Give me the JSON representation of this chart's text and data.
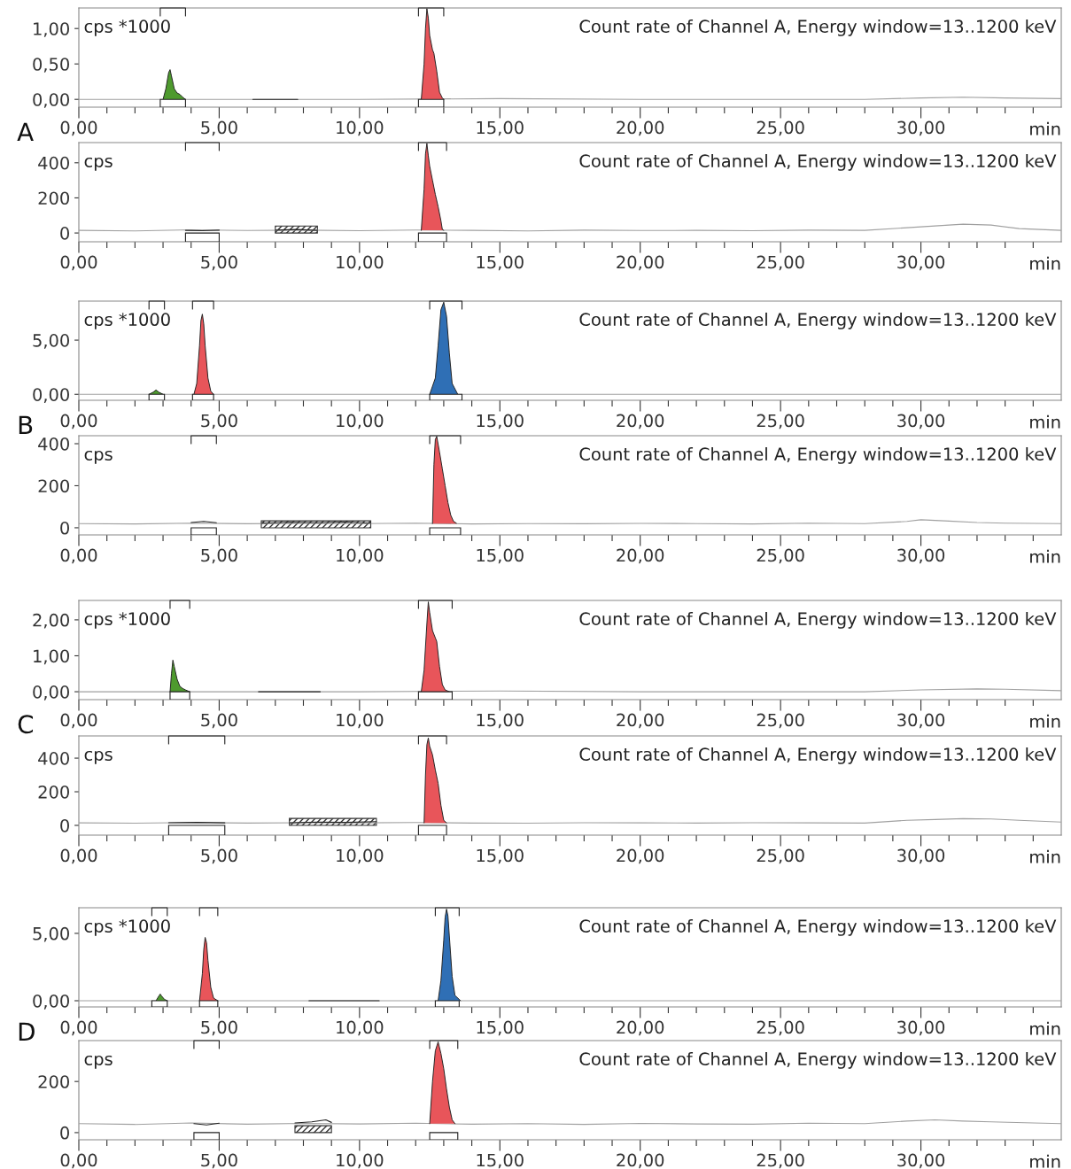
{
  "chart_data": [
    {
      "type": "line",
      "title": "Count rate of Channel A, Energy window=13..1200 keV",
      "ylabel": "cps *1000",
      "xlabel": "min",
      "annotations": [
        "A"
      ],
      "xlim": [
        0,
        35
      ],
      "ylim": [
        -0.11,
        1.29
      ],
      "yticks": [
        {
          "value": 0,
          "label": "0,00"
        },
        {
          "value": 0.5,
          "label": "0,50"
        },
        {
          "value": 1,
          "label": "1,00"
        }
      ],
      "xticks": [
        {
          "value": 0,
          "label": "0,00"
        },
        {
          "value": 1,
          "label": null
        },
        {
          "value": 2,
          "label": null
        },
        {
          "value": 3,
          "label": null
        },
        {
          "value": 4,
          "label": null
        },
        {
          "value": 5,
          "label": "5,00"
        },
        {
          "value": 6,
          "label": null
        },
        {
          "value": 7,
          "label": null
        },
        {
          "value": 8,
          "label": null
        },
        {
          "value": 9,
          "label": null
        },
        {
          "value": 10,
          "label": "10,00"
        },
        {
          "value": 11,
          "label": null
        },
        {
          "value": 12,
          "label": null
        },
        {
          "value": 13,
          "label": null
        },
        {
          "value": 14,
          "label": null
        },
        {
          "value": 15,
          "label": "15,00"
        },
        {
          "value": 16,
          "label": null
        },
        {
          "value": 17,
          "label": null
        },
        {
          "value": 18,
          "label": null
        },
        {
          "value": 19,
          "label": null
        },
        {
          "value": 20,
          "label": "20,00"
        },
        {
          "value": 21,
          "label": null
        },
        {
          "value": 22,
          "label": null
        },
        {
          "value": 23,
          "label": null
        },
        {
          "value": 24,
          "label": null
        },
        {
          "value": 25,
          "label": "25,00"
        },
        {
          "value": 26,
          "label": null
        },
        {
          "value": 27,
          "label": null
        },
        {
          "value": 28,
          "label": null
        },
        {
          "value": 29,
          "label": null
        },
        {
          "value": 30,
          "label": "30,00"
        },
        {
          "value": 31,
          "label": null
        },
        {
          "value": 32,
          "label": null
        },
        {
          "value": 33,
          "label": null
        },
        {
          "value": 34,
          "label": null
        }
      ],
      "series": [
        {
          "type": "line",
          "color": "#a0a0a0",
          "x": [
            0,
            5,
            10,
            15,
            20,
            25,
            28,
            30,
            31.5,
            33,
            35
          ],
          "values": [
            0,
            0,
            0,
            0.01,
            0,
            0,
            0,
            0.02,
            0.03,
            0.02,
            0.01
          ]
        },
        {
          "type": "line",
          "color": "#222222",
          "x": [
            6.2,
            7.8
          ],
          "values": [
            0,
            0
          ]
        },
        {
          "type": "area",
          "color": "#4e9a2e",
          "x": [
            3.0,
            3.1,
            3.2,
            3.25,
            3.3,
            3.4,
            3.5,
            3.6,
            3.7,
            3.8
          ],
          "values": [
            0,
            0.15,
            0.38,
            0.42,
            0.33,
            0.15,
            0.09,
            0.07,
            0.03,
            0
          ]
        },
        {
          "type": "area",
          "color": "#e8555a",
          "x": [
            12.2,
            12.3,
            12.35,
            12.4,
            12.45,
            12.5,
            12.6,
            12.65,
            12.75,
            12.85,
            12.95,
            13.0
          ],
          "values": [
            0,
            0.5,
            1.0,
            1.28,
            1.15,
            0.9,
            0.7,
            0.65,
            0.4,
            0.1,
            0.02,
            0
          ]
        }
      ],
      "bands": [
        {
          "axis": "x",
          "from": 2.9,
          "to": 3.8,
          "color": "#ffffff"
        },
        {
          "axis": "x",
          "from": 12.1,
          "to": 13.0,
          "color": "#ffffff"
        }
      ]
    },
    {
      "type": "line",
      "title": "Count rate of Channel A, Energy window=13..1200 keV",
      "ylabel": "cps",
      "xlabel": "min",
      "xlim": [
        0,
        35
      ],
      "ylim": [
        -50,
        515
      ],
      "yticks": [
        0,
        200,
        400
      ],
      "xticks": [
        {
          "value": 0,
          "label": "0,00"
        },
        {
          "value": 1,
          "label": null
        },
        {
          "value": 2,
          "label": null
        },
        {
          "value": 3,
          "label": null
        },
        {
          "value": 4,
          "label": null
        },
        {
          "value": 5,
          "label": "5,00"
        },
        {
          "value": 6,
          "label": null
        },
        {
          "value": 7,
          "label": null
        },
        {
          "value": 8,
          "label": null
        },
        {
          "value": 9,
          "label": null
        },
        {
          "value": 10,
          "label": "10,00"
        },
        {
          "value": 11,
          "label": null
        },
        {
          "value": 12,
          "label": null
        },
        {
          "value": 13,
          "label": null
        },
        {
          "value": 14,
          "label": null
        },
        {
          "value": 15,
          "label": "15,00"
        },
        {
          "value": 16,
          "label": null
        },
        {
          "value": 17,
          "label": null
        },
        {
          "value": 18,
          "label": null
        },
        {
          "value": 19,
          "label": null
        },
        {
          "value": 20,
          "label": "20,00"
        },
        {
          "value": 21,
          "label": null
        },
        {
          "value": 22,
          "label": null
        },
        {
          "value": 23,
          "label": null
        },
        {
          "value": 24,
          "label": null
        },
        {
          "value": 25,
          "label": "25,00"
        },
        {
          "value": 26,
          "label": null
        },
        {
          "value": 27,
          "label": null
        },
        {
          "value": 28,
          "label": null
        },
        {
          "value": 29,
          "label": null
        },
        {
          "value": 30,
          "label": "30,00"
        },
        {
          "value": 31,
          "label": null
        },
        {
          "value": 32,
          "label": null
        },
        {
          "value": 33,
          "label": null
        },
        {
          "value": 34,
          "label": null
        }
      ],
      "series": [
        {
          "type": "line",
          "color": "#a0a0a0",
          "x": [
            0,
            2,
            4,
            6,
            8,
            10,
            12,
            14,
            16,
            18,
            20,
            22,
            24,
            26,
            28,
            29.5,
            30.5,
            31.5,
            32.5,
            33.5,
            35
          ],
          "values": [
            15,
            12,
            18,
            14,
            16,
            13,
            17,
            15,
            12,
            16,
            14,
            15,
            13,
            16,
            15,
            30,
            40,
            50,
            45,
            25,
            15
          ]
        },
        {
          "type": "line",
          "color": "#222222",
          "x": [
            3.8,
            4.4,
            5.0
          ],
          "values": [
            15,
            13,
            16
          ]
        },
        {
          "type": "line",
          "color": "#222222",
          "x": [
            7.0,
            7.75,
            8.5
          ],
          "values": [
            16,
            20,
            15
          ]
        },
        {
          "type": "area",
          "color": "#e8555a",
          "x": [
            12.2,
            12.3,
            12.35,
            12.4,
            12.45,
            12.5,
            12.6,
            12.7,
            12.8,
            12.9,
            12.95,
            13.0
          ],
          "values": [
            15,
            250,
            450,
            510,
            440,
            380,
            300,
            220,
            150,
            70,
            20,
            15
          ]
        }
      ],
      "bands": [
        {
          "axis": "x",
          "from": 3.8,
          "to": 5.0,
          "color": "#ffffff"
        },
        {
          "axis": "x",
          "from": 12.1,
          "to": 13.1,
          "color": "#ffffff"
        },
        {
          "axis": "x",
          "from": 7.0,
          "to": 8.5,
          "color": "#333333"
        }
      ]
    },
    {
      "type": "line",
      "title": "Count rate of Channel A, Energy window=13..1200 keV",
      "ylabel": "cps *1000",
      "xlabel": "min",
      "annotations": [
        "B"
      ],
      "xlim": [
        0,
        35
      ],
      "ylim": [
        -0.55,
        8.6
      ],
      "yticks": [
        {
          "value": 0,
          "label": "0,00"
        },
        {
          "value": 5,
          "label": "5,00"
        }
      ],
      "xticks": [
        {
          "value": 0,
          "label": "0,00"
        },
        {
          "value": 1,
          "label": null
        },
        {
          "value": 2,
          "label": null
        },
        {
          "value": 3,
          "label": null
        },
        {
          "value": 4,
          "label": null
        },
        {
          "value": 5,
          "label": "5,00"
        },
        {
          "value": 6,
          "label": null
        },
        {
          "value": 7,
          "label": null
        },
        {
          "value": 8,
          "label": null
        },
        {
          "value": 9,
          "label": null
        },
        {
          "value": 10,
          "label": "10,00"
        },
        {
          "value": 11,
          "label": null
        },
        {
          "value": 12,
          "label": null
        },
        {
          "value": 13,
          "label": null
        },
        {
          "value": 14,
          "label": null
        },
        {
          "value": 15,
          "label": "15,00"
        },
        {
          "value": 16,
          "label": null
        },
        {
          "value": 17,
          "label": null
        },
        {
          "value": 18,
          "label": null
        },
        {
          "value": 19,
          "label": null
        },
        {
          "value": 20,
          "label": "20,00"
        },
        {
          "value": 21,
          "label": null
        },
        {
          "value": 22,
          "label": null
        },
        {
          "value": 23,
          "label": null
        },
        {
          "value": 24,
          "label": null
        },
        {
          "value": 25,
          "label": "25,00"
        },
        {
          "value": 26,
          "label": null
        },
        {
          "value": 27,
          "label": null
        },
        {
          "value": 28,
          "label": null
        },
        {
          "value": 29,
          "label": null
        },
        {
          "value": 30,
          "label": "30,00"
        },
        {
          "value": 31,
          "label": null
        },
        {
          "value": 32,
          "label": null
        },
        {
          "value": 33,
          "label": null
        },
        {
          "value": 34,
          "label": null
        }
      ],
      "series": [
        {
          "type": "line",
          "color": "#a0a0a0",
          "x": [
            0,
            5,
            10,
            15,
            20,
            25,
            30,
            35
          ],
          "values": [
            0,
            0,
            0,
            0,
            0,
            0,
            0,
            0
          ]
        },
        {
          "type": "area",
          "color": "#4e9a2e",
          "x": [
            2.5,
            2.65,
            2.75,
            2.85,
            3.0
          ],
          "values": [
            0,
            0.2,
            0.4,
            0.2,
            0
          ]
        },
        {
          "type": "area",
          "color": "#e8555a",
          "x": [
            4.1,
            4.2,
            4.3,
            4.35,
            4.4,
            4.45,
            4.5,
            4.6,
            4.7,
            4.8
          ],
          "values": [
            0,
            1.0,
            4.5,
            6.8,
            7.4,
            6.5,
            4.5,
            1.5,
            0.3,
            0
          ]
        },
        {
          "type": "area",
          "color": "#2f6fb5",
          "x": [
            12.5,
            12.7,
            12.8,
            12.9,
            13.0,
            13.1,
            13.2,
            13.3,
            13.5
          ],
          "values": [
            0,
            1.5,
            4.5,
            7.8,
            8.5,
            7.2,
            3.8,
            1.0,
            0
          ]
        }
      ],
      "bands": [
        {
          "axis": "x",
          "from": 2.5,
          "to": 3.05,
          "color": "#ffffff"
        },
        {
          "axis": "x",
          "from": 4.05,
          "to": 4.8,
          "color": "#ffffff"
        },
        {
          "axis": "x",
          "from": 12.5,
          "to": 13.65,
          "color": "#ffffff"
        }
      ]
    },
    {
      "type": "line",
      "title": "Count rate of Channel A, Energy window=13..1200 keV",
      "ylabel": "cps",
      "xlabel": "min",
      "xlim": [
        0,
        35
      ],
      "ylim": [
        -34,
        438
      ],
      "yticks": [
        0,
        200,
        400
      ],
      "xticks": [
        {
          "value": 0,
          "label": "0,00"
        },
        {
          "value": 1,
          "label": null
        },
        {
          "value": 2,
          "label": null
        },
        {
          "value": 3,
          "label": null
        },
        {
          "value": 4,
          "label": null
        },
        {
          "value": 5,
          "label": "5,00"
        },
        {
          "value": 6,
          "label": null
        },
        {
          "value": 7,
          "label": null
        },
        {
          "value": 8,
          "label": null
        },
        {
          "value": 9,
          "label": null
        },
        {
          "value": 10,
          "label": "10,00"
        },
        {
          "value": 11,
          "label": null
        },
        {
          "value": 12,
          "label": null
        },
        {
          "value": 13,
          "label": null
        },
        {
          "value": 14,
          "label": null
        },
        {
          "value": 15,
          "label": "15,00"
        },
        {
          "value": 16,
          "label": null
        },
        {
          "value": 17,
          "label": null
        },
        {
          "value": 18,
          "label": null
        },
        {
          "value": 19,
          "label": null
        },
        {
          "value": 20,
          "label": "20,00"
        },
        {
          "value": 21,
          "label": null
        },
        {
          "value": 22,
          "label": null
        },
        {
          "value": 23,
          "label": null
        },
        {
          "value": 24,
          "label": null
        },
        {
          "value": 25,
          "label": "25,00"
        },
        {
          "value": 26,
          "label": null
        },
        {
          "value": 27,
          "label": null
        },
        {
          "value": 28,
          "label": null
        },
        {
          "value": 29,
          "label": null
        },
        {
          "value": 30,
          "label": "30,00"
        },
        {
          "value": 31,
          "label": null
        },
        {
          "value": 32,
          "label": null
        },
        {
          "value": 33,
          "label": null
        },
        {
          "value": 34,
          "label": null
        }
      ],
      "series": [
        {
          "type": "line",
          "color": "#a0a0a0",
          "x": [
            0,
            2,
            4,
            6,
            8,
            10,
            12,
            14,
            16,
            18,
            20,
            22,
            24,
            26,
            28,
            29.5,
            30,
            31,
            32,
            33,
            35
          ],
          "values": [
            20,
            18,
            22,
            19,
            21,
            20,
            22,
            18,
            20,
            19,
            21,
            20,
            18,
            22,
            20,
            30,
            38,
            32,
            25,
            22,
            20
          ]
        },
        {
          "type": "line",
          "color": "#222222",
          "x": [
            4.0,
            4.45,
            4.9
          ],
          "values": [
            25,
            30,
            24
          ]
        },
        {
          "type": "line",
          "color": "#222222",
          "x": [
            6.5,
            7.5,
            8.5,
            9.5,
            10.4
          ],
          "values": [
            22,
            26,
            24,
            27,
            22
          ]
        },
        {
          "type": "area",
          "color": "#e8555a",
          "x": [
            12.6,
            12.65,
            12.7,
            12.75,
            12.85,
            12.95,
            13.05,
            13.15,
            13.25,
            13.35,
            13.45
          ],
          "values": [
            20,
            300,
            420,
            435,
            360,
            280,
            200,
            120,
            60,
            30,
            22
          ]
        }
      ],
      "bands": [
        {
          "axis": "x",
          "from": 4.0,
          "to": 4.9,
          "color": "#ffffff"
        },
        {
          "axis": "x",
          "from": 12.5,
          "to": 13.6,
          "color": "#ffffff"
        },
        {
          "axis": "x",
          "from": 6.5,
          "to": 10.4,
          "color": "#333333"
        }
      ]
    },
    {
      "type": "line",
      "title": "Count rate of Channel A, Energy window=13..1200 keV",
      "ylabel": "cps *1000",
      "xlabel": "min",
      "annotations": [
        "C"
      ],
      "xlim": [
        0,
        35
      ],
      "ylim": [
        -0.22,
        2.54
      ],
      "yticks": [
        {
          "value": 0,
          "label": "0,00"
        },
        {
          "value": 1,
          "label": "1,00"
        },
        {
          "value": 2,
          "label": "2,00"
        }
      ],
      "xticks": [
        {
          "value": 0,
          "label": "0,00"
        },
        {
          "value": 1,
          "label": null
        },
        {
          "value": 2,
          "label": null
        },
        {
          "value": 3,
          "label": null
        },
        {
          "value": 4,
          "label": null
        },
        {
          "value": 5,
          "label": "5,00"
        },
        {
          "value": 6,
          "label": null
        },
        {
          "value": 7,
          "label": null
        },
        {
          "value": 8,
          "label": null
        },
        {
          "value": 9,
          "label": null
        },
        {
          "value": 10,
          "label": "10,00"
        },
        {
          "value": 11,
          "label": null
        },
        {
          "value": 12,
          "label": null
        },
        {
          "value": 13,
          "label": null
        },
        {
          "value": 14,
          "label": null
        },
        {
          "value": 15,
          "label": "15,00"
        },
        {
          "value": 16,
          "label": null
        },
        {
          "value": 17,
          "label": null
        },
        {
          "value": 18,
          "label": null
        },
        {
          "value": 19,
          "label": null
        },
        {
          "value": 20,
          "label": "20,00"
        },
        {
          "value": 21,
          "label": null
        },
        {
          "value": 22,
          "label": null
        },
        {
          "value": 23,
          "label": null
        },
        {
          "value": 24,
          "label": null
        },
        {
          "value": 25,
          "label": "25,00"
        },
        {
          "value": 26,
          "label": null
        },
        {
          "value": 27,
          "label": null
        },
        {
          "value": 28,
          "label": null
        },
        {
          "value": 29,
          "label": null
        },
        {
          "value": 30,
          "label": "30,00"
        },
        {
          "value": 31,
          "label": null
        },
        {
          "value": 32,
          "label": null
        },
        {
          "value": 33,
          "label": null
        },
        {
          "value": 34,
          "label": null
        }
      ],
      "series": [
        {
          "type": "line",
          "color": "#a0a0a0",
          "x": [
            0,
            5,
            10,
            15,
            20,
            25,
            28,
            30,
            32,
            33,
            35
          ],
          "values": [
            0,
            0,
            0,
            0.02,
            0,
            0,
            0,
            0.05,
            0.08,
            0.07,
            0.03
          ]
        },
        {
          "type": "line",
          "color": "#222222",
          "x": [
            6.4,
            8.6
          ],
          "values": [
            0,
            0
          ]
        },
        {
          "type": "area",
          "color": "#4e9a2e",
          "x": [
            3.25,
            3.3,
            3.35,
            3.4,
            3.5,
            3.6,
            3.7,
            3.8,
            3.95
          ],
          "values": [
            0,
            0.5,
            0.88,
            0.7,
            0.35,
            0.15,
            0.09,
            0.05,
            0
          ]
        },
        {
          "type": "area",
          "color": "#e8555a",
          "x": [
            12.2,
            12.3,
            12.4,
            12.45,
            12.5,
            12.6,
            12.7,
            12.75,
            12.85,
            12.95,
            13.05,
            13.2
          ],
          "values": [
            0,
            0.6,
            1.9,
            2.5,
            2.2,
            1.7,
            1.5,
            1.4,
            0.7,
            0.2,
            0.05,
            0
          ]
        }
      ],
      "bands": [
        {
          "axis": "x",
          "from": 3.25,
          "to": 3.95,
          "color": "#ffffff"
        },
        {
          "axis": "x",
          "from": 12.1,
          "to": 13.3,
          "color": "#ffffff"
        }
      ]
    },
    {
      "type": "line",
      "title": "Count rate of Channel A, Energy window=13..1200 keV",
      "ylabel": "cps",
      "xlabel": "min",
      "xlim": [
        0,
        35
      ],
      "ylim": [
        -58,
        532
      ],
      "yticks": [
        0,
        200,
        400
      ],
      "xticks": [
        {
          "value": 0,
          "label": "0,00"
        },
        {
          "value": 1,
          "label": null
        },
        {
          "value": 2,
          "label": null
        },
        {
          "value": 3,
          "label": null
        },
        {
          "value": 4,
          "label": null
        },
        {
          "value": 5,
          "label": "5,00"
        },
        {
          "value": 6,
          "label": null
        },
        {
          "value": 7,
          "label": null
        },
        {
          "value": 8,
          "label": null
        },
        {
          "value": 9,
          "label": null
        },
        {
          "value": 10,
          "label": "10,00"
        },
        {
          "value": 11,
          "label": null
        },
        {
          "value": 12,
          "label": null
        },
        {
          "value": 13,
          "label": null
        },
        {
          "value": 14,
          "label": null
        },
        {
          "value": 15,
          "label": "15,00"
        },
        {
          "value": 16,
          "label": null
        },
        {
          "value": 17,
          "label": null
        },
        {
          "value": 18,
          "label": null
        },
        {
          "value": 19,
          "label": null
        },
        {
          "value": 20,
          "label": "20,00"
        },
        {
          "value": 21,
          "label": null
        },
        {
          "value": 22,
          "label": null
        },
        {
          "value": 23,
          "label": null
        },
        {
          "value": 24,
          "label": null
        },
        {
          "value": 25,
          "label": "25,00"
        },
        {
          "value": 26,
          "label": null
        },
        {
          "value": 27,
          "label": null
        },
        {
          "value": 28,
          "label": null
        },
        {
          "value": 29,
          "label": null
        },
        {
          "value": 30,
          "label": "30,00"
        },
        {
          "value": 31,
          "label": null
        },
        {
          "value": 32,
          "label": null
        },
        {
          "value": 33,
          "label": null
        },
        {
          "value": 34,
          "label": null
        }
      ],
      "series": [
        {
          "type": "line",
          "color": "#a0a0a0",
          "x": [
            0,
            2,
            4,
            6,
            8,
            10,
            12,
            14,
            16,
            18,
            20,
            22,
            24,
            26,
            28,
            29.5,
            30.5,
            31.5,
            32.5,
            33.5,
            35
          ],
          "values": [
            15,
            13,
            17,
            14,
            16,
            15,
            17,
            14,
            13,
            16,
            15,
            14,
            16,
            15,
            14,
            30,
            35,
            40,
            38,
            30,
            20
          ]
        },
        {
          "type": "line",
          "color": "#222222",
          "x": [
            3.2,
            4.2,
            5.2
          ],
          "values": [
            16,
            18,
            15
          ]
        },
        {
          "type": "line",
          "color": "#222222",
          "x": [
            7.5,
            8.5,
            9.5,
            10.6
          ],
          "values": [
            15,
            20,
            18,
            22
          ]
        },
        {
          "type": "area",
          "color": "#e8555a",
          "x": [
            12.3,
            12.35,
            12.4,
            12.45,
            12.5,
            12.6,
            12.7,
            12.8,
            12.9,
            13.0,
            13.1
          ],
          "values": [
            15,
            300,
            480,
            520,
            470,
            420,
            330,
            250,
            120,
            30,
            15
          ]
        }
      ],
      "bands": [
        {
          "axis": "x",
          "from": 3.2,
          "to": 5.2,
          "color": "#ffffff"
        },
        {
          "axis": "x",
          "from": 12.1,
          "to": 13.1,
          "color": "#ffffff"
        },
        {
          "axis": "x",
          "from": 7.5,
          "to": 10.6,
          "color": "#333333"
        }
      ]
    },
    {
      "type": "line",
      "title": "Count rate of Channel A, Energy window=13..1200 keV",
      "ylabel": "cps *1000",
      "xlabel": "min",
      "annotations": [
        "D"
      ],
      "xlim": [
        0,
        35
      ],
      "ylim": [
        -0.46,
        6.9
      ],
      "yticks": [
        {
          "value": 0,
          "label": "0,00"
        },
        {
          "value": 5,
          "label": "5,00"
        }
      ],
      "xticks": [
        {
          "value": 0,
          "label": "0,00"
        },
        {
          "value": 1,
          "label": null
        },
        {
          "value": 2,
          "label": null
        },
        {
          "value": 3,
          "label": null
        },
        {
          "value": 4,
          "label": null
        },
        {
          "value": 5,
          "label": "5,00"
        },
        {
          "value": 6,
          "label": null
        },
        {
          "value": 7,
          "label": null
        },
        {
          "value": 8,
          "label": null
        },
        {
          "value": 9,
          "label": null
        },
        {
          "value": 10,
          "label": "10,00"
        },
        {
          "value": 11,
          "label": null
        },
        {
          "value": 12,
          "label": null
        },
        {
          "value": 13,
          "label": null
        },
        {
          "value": 14,
          "label": null
        },
        {
          "value": 15,
          "label": "15,00"
        },
        {
          "value": 16,
          "label": null
        },
        {
          "value": 17,
          "label": null
        },
        {
          "value": 18,
          "label": null
        },
        {
          "value": 19,
          "label": null
        },
        {
          "value": 20,
          "label": "20,00"
        },
        {
          "value": 21,
          "label": null
        },
        {
          "value": 22,
          "label": null
        },
        {
          "value": 23,
          "label": null
        },
        {
          "value": 24,
          "label": null
        },
        {
          "value": 25,
          "label": "25,00"
        },
        {
          "value": 26,
          "label": null
        },
        {
          "value": 27,
          "label": null
        },
        {
          "value": 28,
          "label": null
        },
        {
          "value": 29,
          "label": null
        },
        {
          "value": 30,
          "label": "30,00"
        },
        {
          "value": 31,
          "label": null
        },
        {
          "value": 32,
          "label": null
        },
        {
          "value": 33,
          "label": null
        },
        {
          "value": 34,
          "label": null
        }
      ],
      "series": [
        {
          "type": "line",
          "color": "#a0a0a0",
          "x": [
            0,
            5,
            10,
            15,
            20,
            25,
            30,
            35
          ],
          "values": [
            0,
            0,
            0,
            0,
            0,
            0,
            0,
            0
          ]
        },
        {
          "type": "line",
          "color": "#222222",
          "x": [
            8.2,
            10.7
          ],
          "values": [
            0,
            0
          ]
        },
        {
          "type": "area",
          "color": "#4e9a2e",
          "x": [
            2.75,
            2.85,
            2.9,
            2.95,
            3.05,
            3.15
          ],
          "values": [
            0,
            0.35,
            0.5,
            0.35,
            0.1,
            0
          ]
        },
        {
          "type": "area",
          "color": "#e8555a",
          "x": [
            4.3,
            4.4,
            4.45,
            4.5,
            4.55,
            4.6,
            4.7,
            4.8,
            4.95
          ],
          "values": [
            0,
            2.0,
            3.8,
            4.7,
            4.3,
            3.0,
            1.0,
            0.2,
            0
          ]
        },
        {
          "type": "area",
          "color": "#2f6fb5",
          "x": [
            12.8,
            12.9,
            13.0,
            13.05,
            13.1,
            13.15,
            13.2,
            13.3,
            13.4,
            13.6
          ],
          "values": [
            0,
            1.5,
            4.5,
            6.2,
            6.8,
            6.3,
            4.8,
            1.8,
            0.4,
            0
          ]
        }
      ],
      "bands": [
        {
          "axis": "x",
          "from": 2.6,
          "to": 3.15,
          "color": "#ffffff"
        },
        {
          "axis": "x",
          "from": 4.3,
          "to": 4.95,
          "color": "#ffffff"
        },
        {
          "axis": "x",
          "from": 12.7,
          "to": 13.55,
          "color": "#ffffff"
        }
      ]
    },
    {
      "type": "line",
      "title": "Count rate of Channel A, Energy window=13..1200 keV",
      "ylabel": "cps",
      "xlabel": "min",
      "xlim": [
        0,
        35
      ],
      "ylim": [
        -28,
        360
      ],
      "yticks": [
        0,
        200
      ],
      "xticks": [
        {
          "value": 0,
          "label": "0,00"
        },
        {
          "value": 1,
          "label": null
        },
        {
          "value": 2,
          "label": null
        },
        {
          "value": 3,
          "label": null
        },
        {
          "value": 4,
          "label": null
        },
        {
          "value": 5,
          "label": "5,00"
        },
        {
          "value": 6,
          "label": null
        },
        {
          "value": 7,
          "label": null
        },
        {
          "value": 8,
          "label": null
        },
        {
          "value": 9,
          "label": null
        },
        {
          "value": 10,
          "label": "10,00"
        },
        {
          "value": 11,
          "label": null
        },
        {
          "value": 12,
          "label": null
        },
        {
          "value": 13,
          "label": null
        },
        {
          "value": 14,
          "label": null
        },
        {
          "value": 15,
          "label": "15,00"
        },
        {
          "value": 16,
          "label": null
        },
        {
          "value": 17,
          "label": null
        },
        {
          "value": 18,
          "label": null
        },
        {
          "value": 19,
          "label": null
        },
        {
          "value": 20,
          "label": "20,00"
        },
        {
          "value": 21,
          "label": null
        },
        {
          "value": 22,
          "label": null
        },
        {
          "value": 23,
          "label": null
        },
        {
          "value": 24,
          "label": null
        },
        {
          "value": 25,
          "label": "25,00"
        },
        {
          "value": 26,
          "label": null
        },
        {
          "value": 27,
          "label": null
        },
        {
          "value": 28,
          "label": null
        },
        {
          "value": 29,
          "label": null
        },
        {
          "value": 30,
          "label": "30,00"
        },
        {
          "value": 31,
          "label": null
        },
        {
          "value": 32,
          "label": null
        },
        {
          "value": 33,
          "label": null
        },
        {
          "value": 34,
          "label": null
        }
      ],
      "series": [
        {
          "type": "line",
          "color": "#a0a0a0",
          "x": [
            0,
            2,
            4,
            6,
            8,
            10,
            12,
            14,
            16,
            18,
            20,
            22,
            24,
            26,
            28,
            29.5,
            30.5,
            31.5,
            32.5,
            34,
            35
          ],
          "values": [
            35,
            32,
            38,
            33,
            36,
            34,
            37,
            33,
            35,
            32,
            36,
            34,
            33,
            37,
            35,
            45,
            50,
            45,
            42,
            38,
            35
          ]
        },
        {
          "type": "line",
          "color": "#222222",
          "x": [
            4.1,
            4.55,
            5.0
          ],
          "values": [
            35,
            30,
            37
          ]
        },
        {
          "type": "line",
          "color": "#222222",
          "x": [
            7.7,
            8.3,
            8.8,
            9.0
          ],
          "values": [
            38,
            42,
            50,
            40
          ]
        },
        {
          "type": "area",
          "color": "#e8555a",
          "x": [
            12.5,
            12.6,
            12.7,
            12.8,
            12.9,
            13.0,
            13.1,
            13.2,
            13.3,
            13.4
          ],
          "values": [
            35,
            200,
            320,
            355,
            310,
            250,
            170,
            100,
            50,
            35
          ]
        }
      ],
      "bands": [
        {
          "axis": "x",
          "from": 4.1,
          "to": 5.0,
          "color": "#ffffff"
        },
        {
          "axis": "x",
          "from": 12.5,
          "to": 13.5,
          "color": "#ffffff"
        },
        {
          "axis": "x",
          "from": 7.7,
          "to": 9.0,
          "color": "#333333"
        }
      ]
    }
  ]
}
